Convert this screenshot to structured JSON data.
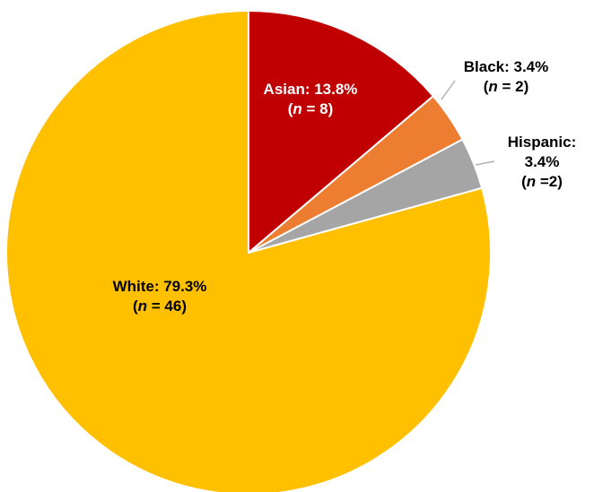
{
  "chart_data": {
    "type": "pie",
    "title": "",
    "start": "12 o'clock",
    "direction": "clockwise",
    "legend": "none",
    "slices": [
      {
        "name": "Asian",
        "percent_label": "13.8%",
        "n_text": "= 8",
        "value": 8,
        "percent": 13.8,
        "color": "#c00000",
        "label_color": "#ffffff",
        "label_lines": [
          "Asian:  13.8%",
          "(n = 8)"
        ]
      },
      {
        "name": "Black",
        "percent_label": "3.4%",
        "n_text": "= 2",
        "value": 2,
        "percent": 3.4,
        "color": "#ed7d31",
        "label_color": "#000000",
        "label_lines": [
          "Black:  3.4%",
          "(n = 2)"
        ]
      },
      {
        "name": "Hispanic",
        "percent_label": "3.4%",
        "n_text": "=2",
        "value": 2,
        "percent": 3.4,
        "color": "#a5a5a5",
        "label_color": "#000000",
        "label_lines": [
          "Hispanic:",
          "3.4%",
          "(n =2)"
        ]
      },
      {
        "name": "White",
        "percent_label": "79.3%",
        "n_text": "= 46",
        "value": 46,
        "percent": 79.3,
        "color": "#ffc000",
        "label_color": "#000000",
        "label_lines": [
          "White:  79.3%",
          "(n = 46)"
        ]
      }
    ]
  }
}
